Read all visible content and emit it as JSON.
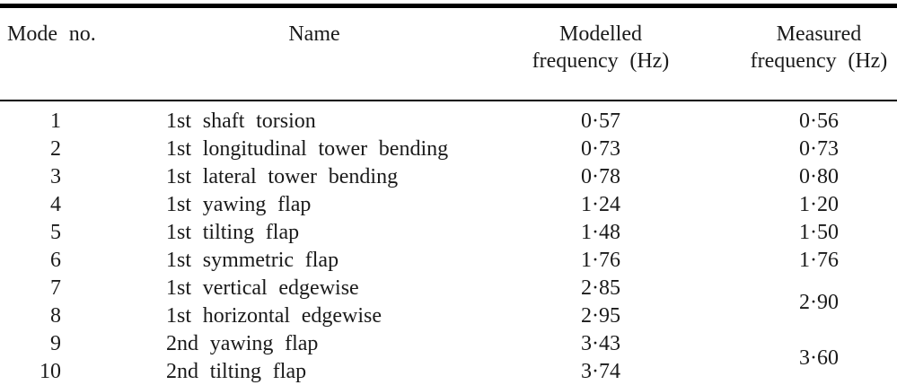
{
  "colors": {
    "background": "#ffffff",
    "text": "#1a1a1a",
    "rule": "#000000"
  },
  "table": {
    "headers": {
      "mode": "Mode no.",
      "name": "Name",
      "modelled_line1": "Modelled",
      "modelled_line2": "frequency (Hz)",
      "measured_line1": "Measured",
      "measured_line2": "frequency (Hz)"
    },
    "rows": [
      {
        "mode": "1",
        "name": "1st shaft torsion",
        "modelled": "0·57",
        "measured": "0·56"
      },
      {
        "mode": "2",
        "name": "1st longitudinal tower bending",
        "modelled": "0·73",
        "measured": "0·73"
      },
      {
        "mode": "3",
        "name": "1st lateral tower bending",
        "modelled": "0·78",
        "measured": "0·80"
      },
      {
        "mode": "4",
        "name": "1st yawing flap",
        "modelled": "1·24",
        "measured": "1·20"
      },
      {
        "mode": "5",
        "name": "1st tilting flap",
        "modelled": "1·48",
        "measured": "1·50"
      },
      {
        "mode": "6",
        "name": "1st symmetric flap",
        "modelled": "1·76",
        "measured": "1·76"
      },
      {
        "mode": "7",
        "name": "1st vertical edgewise",
        "modelled": "2·85"
      },
      {
        "mode": "8",
        "name": "1st horizontal edgewise",
        "modelled": "2·95"
      },
      {
        "mode": "9",
        "name": "2nd yawing flap",
        "modelled": "3·43"
      },
      {
        "mode": "10",
        "name": "2nd tilting flap",
        "modelled": "3·74"
      }
    ],
    "merged_measured": [
      {
        "spans_modes": "7-8",
        "value": "2·90"
      },
      {
        "spans_modes": "9-10",
        "value": "3·60"
      }
    ]
  }
}
